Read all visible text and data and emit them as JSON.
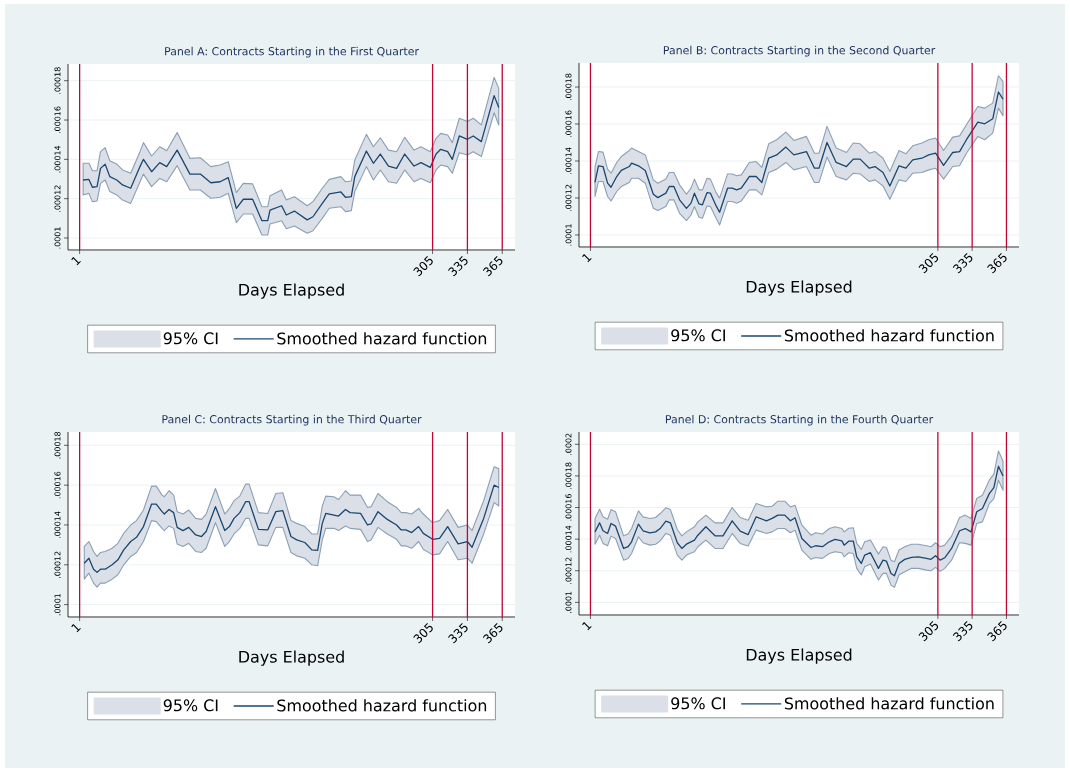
{
  "chart_data": [
    {
      "type": "line",
      "title": "Panel A: Contracts Starting in the First Quarter",
      "xlabel": "Days Elapsed",
      "legend_title": "95% CI",
      "x": [
        4,
        9,
        12,
        16,
        19,
        23,
        27,
        33,
        38,
        45,
        53,
        56,
        63,
        70,
        76,
        85,
        96,
        105,
        114,
        122,
        129,
        136,
        142,
        150,
        158,
        163,
        165,
        175,
        179,
        186,
        197,
        202,
        210,
        216,
        226,
        230,
        235,
        238,
        248,
        254,
        260,
        267,
        274,
        281,
        289,
        295,
        303,
        308,
        312,
        318,
        322,
        328,
        335,
        340,
        347,
        358,
        362
      ],
      "series": [
        {
          "name": "Smoothed hazard function",
          "color": "#1a476f",
          "values": [
            0.0001295,
            0.0001298,
            0.0001258,
            0.0001261,
            0.0001354,
            0.0001375,
            0.0001312,
            0.0001295,
            0.000127,
            0.0001253,
            0.0001363,
            0.00014,
            0.0001337,
            0.0001383,
            0.0001363,
            0.0001447,
            0.0001325,
            0.0001325,
            0.0001281,
            0.0001286,
            0.0001307,
            0.0001151,
            0.0001197,
            0.0001197,
            0.0001088,
            0.0001088,
            0.0001142,
            0.0001164,
            0.0001117,
            0.0001137,
            0.0001092,
            0.0001108,
            0.0001176,
            0.0001224,
            0.0001234,
            0.0001207,
            0.000121,
            0.0001312,
            0.0001442,
            0.000138,
            0.0001427,
            0.0001366,
            0.0001354,
            0.0001427,
            0.0001366,
            0.0001383,
            0.0001359,
            0.0001427,
            0.0001451,
            0.0001439,
            0.00014,
            0.0001519,
            0.0001502,
            0.0001519,
            0.000149,
            0.0001724,
            0.0001664
          ],
          "lower": [
            0.0001219,
            0.0001227,
            0.0001185,
            0.0001188,
            0.0001278,
            0.0001295,
            0.0001236,
            0.0001219,
            0.0001193,
            0.0001176,
            0.0001286,
            0.0001325,
            0.0001261,
            0.0001303,
            0.0001286,
            0.0001368,
            0.0001244,
            0.0001244,
            0.0001202,
            0.0001207,
            0.0001227,
            0.0001078,
            0.0001122,
            0.0001122,
            0.0001015,
            0.0001015,
            0.0001071,
            0.0001088,
            0.0001047,
            0.0001061,
            0.0001024,
            0.0001037,
            0.00011,
            0.0001151,
            0.0001159,
            0.0001134,
            0.0001139,
            0.0001236,
            0.0001363,
            0.0001295,
            0.0001346,
            0.0001286,
            0.0001278,
            0.0001346,
            0.0001286,
            0.0001303,
            0.0001281,
            0.0001346,
            0.0001371,
            0.0001363,
            0.0001329,
            0.0001434,
            0.0001422,
            0.0001439,
            0.0001414,
            0.0001637,
            0.0001575
          ],
          "upper": [
            0.000138,
            0.000138,
            0.0001342,
            0.0001342,
            0.0001439,
            0.0001459,
            0.0001393,
            0.0001376,
            0.0001346,
            0.0001329,
            0.0001439,
            0.0001485,
            0.0001417,
            0.0001464,
            0.0001444,
            0.0001536,
            0.0001405,
            0.0001408,
            0.0001363,
            0.0001371,
            0.0001388,
            0.0001231,
            0.0001278,
            0.0001275,
            0.0001159,
            0.0001159,
            0.0001215,
            0.0001244,
            0.0001193,
            0.000121,
            0.0001164,
            0.0001185,
            0.0001253,
            0.0001298,
            0.0001312,
            0.0001286,
            0.000129,
            0.0001397,
            0.0001527,
            0.0001464,
            0.000151,
            0.0001447,
            0.0001439,
            0.0001512,
            0.0001447,
            0.0001464,
            0.0001439,
            0.0001507,
            0.0001532,
            0.0001524,
            0.0001485,
            0.0001609,
            0.0001592,
            0.0001609,
            0.0001575,
            0.0001817,
            0.0001761
          ]
        }
      ],
      "xlim": [
        -9,
        376
      ],
      "ylim": [
        9.39e-05,
        0.0001885
      ],
      "xticks": [
        1,
        305,
        335,
        365
      ],
      "yticks": [
        {
          "value": 0.0001,
          "label": ".0001"
        },
        {
          "value": 0.00012,
          "label": ".00012"
        },
        {
          "value": 0.00014,
          "label": ".00014"
        },
        {
          "value": 0.00016,
          "label": ".00016"
        },
        {
          "value": 0.00018,
          "label": ".00018"
        }
      ],
      "ref_lines": [
        {
          "axis": "x",
          "value": 1,
          "color": "#c10534"
        },
        {
          "axis": "x",
          "value": 305,
          "color": "#c10534"
        },
        {
          "axis": "x",
          "value": 335,
          "color": "#c10534"
        },
        {
          "axis": "x",
          "value": 365,
          "color": "#c10534"
        }
      ],
      "grid": "y",
      "legend": "bottom"
    },
    {
      "type": "line",
      "title": "Panel B: Contracts Starting in the Second Quarter",
      "xlabel": "Days Elapsed",
      "legend_title": "95% CI",
      "x": [
        5,
        8,
        12,
        16,
        19,
        24,
        28,
        35,
        37,
        43,
        49,
        56,
        60,
        67,
        70,
        74,
        79,
        85,
        89,
        92,
        96,
        99,
        103,
        106,
        111,
        114,
        121,
        125,
        129,
        133,
        140,
        146,
        151,
        157,
        164,
        172,
        179,
        190,
        197,
        201,
        208,
        216,
        225,
        231,
        237,
        245,
        250,
        257,
        263,
        271,
        277,
        283,
        291,
        297,
        303,
        310,
        318,
        324,
        330,
        340,
        346,
        353,
        358,
        362
      ],
      "series": [
        {
          "name": "Smoothed hazard function",
          "color": "#1a476f",
          "values": [
            0.0001284,
            0.0001374,
            0.000137,
            0.000128,
            0.0001258,
            0.0001316,
            0.0001349,
            0.000137,
            0.0001388,
            0.0001374,
            0.0001349,
            0.000122,
            0.0001202,
            0.0001226,
            0.0001262,
            0.0001262,
            0.000119,
            0.0001144,
            0.0001172,
            0.0001226,
            0.0001168,
            0.0001163,
            0.0001229,
            0.0001226,
            0.0001157,
            0.0001123,
            0.0001253,
            0.0001253,
            0.0001244,
            0.0001253,
            0.0001316,
            0.0001316,
            0.0001284,
            0.0001415,
            0.0001433,
            0.0001475,
            0.0001433,
            0.0001451,
            0.0001361,
            0.0001361,
            0.00015,
            0.0001392,
            0.000137,
            0.000141,
            0.000141,
            0.0001361,
            0.000137,
            0.0001338,
            0.0001265,
            0.0001374,
            0.0001361,
            0.0001406,
            0.0001415,
            0.0001433,
            0.0001442,
            0.0001376,
            0.0001446,
            0.0001451,
            0.0001515,
            0.000161,
            0.0001601,
            0.0001628,
            0.0001773,
            0.0001735
          ],
          "lower": [
            0.0001208,
            0.0001289,
            0.0001289,
            0.0001208,
            0.0001184,
            0.0001235,
            0.0001262,
            0.0001284,
            0.0001307,
            0.0001307,
            0.000128,
            0.0001144,
            0.0001132,
            0.0001154,
            0.000119,
            0.000119,
            0.0001117,
            0.0001078,
            0.0001108,
            0.0001154,
            0.0001096,
            0.000109,
            0.0001157,
            0.0001154,
            0.000109,
            0.0001054,
            0.0001181,
            0.0001181,
            0.0001172,
            0.0001184,
            0.0001244,
            0.0001244,
            0.0001217,
            0.0001338,
            0.0001356,
            0.0001392,
            0.0001352,
            0.000137,
            0.0001284,
            0.0001284,
            0.0001421,
            0.0001316,
            0.0001298,
            0.0001334,
            0.000133,
            0.0001289,
            0.0001298,
            0.0001265,
            0.0001193,
            0.0001298,
            0.0001289,
            0.0001334,
            0.0001338,
            0.0001352,
            0.0001361,
            0.0001302,
            0.000137,
            0.0001374,
            0.0001442,
            0.0001533,
            0.0001515,
            0.0001551,
            0.0001686,
            0.0001645
          ],
          "upper": [
            0.0001367,
            0.0001451,
            0.0001448,
            0.0001356,
            0.0001334,
            0.0001392,
            0.0001424,
            0.0001457,
            0.000147,
            0.0001451,
            0.0001433,
            0.0001298,
            0.000128,
            0.0001303,
            0.0001338,
            0.0001338,
            0.0001271,
            0.000122,
            0.0001253,
            0.0001302,
            0.0001244,
            0.0001244,
            0.0001307,
            0.0001302,
            0.0001229,
            0.0001199,
            0.000133,
            0.000133,
            0.000132,
            0.0001325,
            0.0001392,
            0.0001397,
            0.0001365,
            0.0001493,
            0.0001515,
            0.0001556,
            0.0001511,
            0.0001533,
            0.0001442,
            0.0001442,
            0.0001587,
            0.000147,
            0.0001446,
            0.0001497,
            0.0001493,
            0.0001442,
            0.0001451,
            0.0001415,
            0.0001343,
            0.0001457,
            0.0001439,
            0.0001482,
            0.0001497,
            0.0001515,
            0.0001524,
            0.0001457,
            0.0001529,
            0.0001536,
            0.0001596,
            0.0001695,
            0.0001686,
            0.0001713,
            0.0001861,
            0.0001831
          ]
        }
      ],
      "xlim": [
        -9,
        376
      ],
      "ylim": [
        9.35e-05,
        0.000193
      ],
      "xticks": [
        1,
        305,
        335,
        365
      ],
      "yticks": [
        {
          "value": 0.0001,
          "label": ".0001"
        },
        {
          "value": 0.00012,
          "label": ".00012"
        },
        {
          "value": 0.00014,
          "label": ".00014"
        },
        {
          "value": 0.00016,
          "label": ".00016"
        },
        {
          "value": 0.00018,
          "label": ".00018"
        }
      ],
      "ref_lines": [
        {
          "axis": "x",
          "value": 1,
          "color": "#c10534"
        },
        {
          "axis": "x",
          "value": 305,
          "color": "#c10534"
        },
        {
          "axis": "x",
          "value": 335,
          "color": "#c10534"
        },
        {
          "axis": "x",
          "value": 365,
          "color": "#c10534"
        }
      ],
      "grid": "y",
      "legend": "bottom"
    },
    {
      "type": "line",
      "title": "Panel C: Contracts Starting in the Third Quarter",
      "xlabel": "Days Elapsed",
      "legend_title": "95% CI",
      "x": [
        5,
        9,
        13,
        16,
        19,
        23,
        29,
        34,
        39,
        45,
        50,
        56,
        63,
        67,
        72,
        74,
        78,
        82,
        85,
        90,
        95,
        101,
        106,
        110,
        118,
        126,
        130,
        134,
        139,
        144,
        147,
        155,
        163,
        170,
        176,
        183,
        188,
        195,
        201,
        206,
        210,
        213,
        220,
        224,
        230,
        234,
        243,
        249,
        252,
        258,
        266,
        274,
        278,
        282,
        287,
        293,
        297,
        305,
        311,
        318,
        327,
        335,
        339,
        349,
        358,
        362
      ],
      "series": [
        {
          "name": "Smoothed hazard function",
          "color": "#1a476f",
          "values": [
            0.0001208,
            0.0001233,
            0.0001178,
            0.0001162,
            0.0001178,
            0.0001178,
            0.00012,
            0.0001225,
            0.0001275,
            0.0001317,
            0.0001338,
            0.0001392,
            0.0001505,
            0.0001505,
            0.0001467,
            0.0001455,
            0.0001478,
            0.0001462,
            0.0001388,
            0.0001372,
            0.0001388,
            0.000135,
            0.0001342,
            0.0001367,
            0.0001492,
            0.0001372,
            0.0001392,
            0.0001433,
            0.0001462,
            0.0001517,
            0.0001517,
            0.0001378,
            0.0001375,
            0.0001467,
            0.0001472,
            0.0001342,
            0.0001325,
            0.0001312,
            0.0001275,
            0.0001272,
            0.0001408,
            0.0001458,
            0.000145,
            0.0001445,
            0.0001478,
            0.0001462,
            0.0001458,
            0.00014,
            0.0001405,
            0.0001467,
            0.0001428,
            0.00014,
            0.0001375,
            0.0001375,
            0.0001362,
            0.0001392,
            0.0001358,
            0.0001328,
            0.0001333,
            0.0001392,
            0.0001305,
            0.0001317,
            0.0001288,
            0.0001433,
            0.00016,
            0.0001588
          ],
          "lower": [
            0.0001128,
            0.0001158,
            0.0001108,
            0.0001088,
            0.0001108,
            0.0001108,
            0.0001128,
            0.000115,
            0.00012,
            0.0001242,
            0.0001262,
            0.0001317,
            0.0001422,
            0.0001417,
            0.0001383,
            0.0001372,
            0.0001395,
            0.0001383,
            0.0001305,
            0.0001292,
            0.0001308,
            0.0001267,
            0.0001262,
            0.0001283,
            0.0001412,
            0.0001292,
            0.0001317,
            0.0001355,
            0.0001383,
            0.0001433,
            0.0001433,
            0.00013,
            0.0001295,
            0.0001388,
            0.0001388,
            0.0001262,
            0.0001245,
            0.0001233,
            0.00012,
            0.0001195,
            0.0001325,
            0.0001383,
            0.0001383,
            0.0001372,
            0.0001395,
            0.0001383,
            0.0001378,
            0.0001317,
            0.0001325,
            0.0001388,
            0.0001355,
            0.0001328,
            0.0001295,
            0.0001295,
            0.0001283,
            0.0001317,
            0.0001278,
            0.000125,
            0.0001255,
            0.0001317,
            0.0001225,
            0.0001233,
            0.0001208,
            0.0001355,
            0.0001512,
            0.0001495
          ],
          "upper": [
            0.0001292,
            0.0001317,
            0.0001267,
            0.0001242,
            0.0001262,
            0.0001267,
            0.0001283,
            0.0001308,
            0.0001358,
            0.00014,
            0.0001422,
            0.0001475,
            0.0001595,
            0.0001595,
            0.000155,
            0.0001542,
            0.0001572,
            0.000155,
            0.0001467,
            0.0001455,
            0.0001475,
            0.0001433,
            0.0001428,
            0.0001455,
            0.0001583,
            0.0001455,
            0.0001483,
            0.0001522,
            0.0001545,
            0.0001605,
            0.0001605,
            0.0001462,
            0.0001458,
            0.0001558,
            0.0001562,
            0.0001422,
            0.0001408,
            0.0001392,
            0.0001355,
            0.0001355,
            0.0001495,
            0.0001545,
            0.0001542,
            0.0001528,
            0.0001572,
            0.000155,
            0.000155,
            0.0001488,
            0.0001492,
            0.0001558,
            0.0001517,
            0.0001488,
            0.0001462,
            0.0001462,
            0.0001455,
            0.0001483,
            0.0001455,
            0.0001412,
            0.0001422,
            0.0001478,
            0.0001388,
            0.00014,
            0.0001372,
            0.0001522,
            0.0001692,
            0.0001683
          ]
        }
      ],
      "xlim": [
        -9,
        376
      ],
      "ylim": [
        9.38e-05,
        0.0001867
      ],
      "xticks": [
        1,
        305,
        335,
        365
      ],
      "yticks": [
        {
          "value": 0.0001,
          "label": ".0001"
        },
        {
          "value": 0.00012,
          "label": ".00012"
        },
        {
          "value": 0.00014,
          "label": ".00014"
        },
        {
          "value": 0.00016,
          "label": ".00016"
        },
        {
          "value": 0.00018,
          "label": ".00018"
        }
      ],
      "ref_lines": [
        {
          "axis": "x",
          "value": 1,
          "color": "#c10534"
        },
        {
          "axis": "x",
          "value": 305,
          "color": "#c10534"
        },
        {
          "axis": "x",
          "value": 335,
          "color": "#c10534"
        },
        {
          "axis": "x",
          "value": 365,
          "color": "#c10534"
        }
      ],
      "grid": "y",
      "legend": "bottom"
    },
    {
      "type": "line",
      "title": "Panel D: Contracts Starting in the Fourth Quarter",
      "xlabel": "Days Elapsed",
      "legend_title": "95% CI",
      "x": [
        5,
        9,
        12,
        16,
        19,
        23,
        30,
        34,
        37,
        43,
        47,
        53,
        58,
        62,
        67,
        71,
        77,
        81,
        85,
        92,
        95,
        102,
        110,
        117,
        125,
        132,
        139,
        146,
        155,
        160,
        165,
        171,
        176,
        180,
        186,
        194,
        198,
        204,
        210,
        215,
        221,
        223,
        227,
        231,
        234,
        238,
        241,
        246,
        253,
        257,
        260,
        264,
        267,
        271,
        276,
        282,
        288,
        295,
        299,
        303,
        307,
        311,
        317,
        324,
        329,
        334,
        339,
        344,
        350,
        354,
        358,
        362
      ],
      "series": [
        {
          "name": "Smoothed hazard function",
          "color": "#1a476f",
          "values": [
            0.0001446,
            0.0001503,
            0.0001453,
            0.0001436,
            0.0001499,
            0.0001482,
            0.0001341,
            0.0001352,
            0.0001383,
            0.0001495,
            0.0001453,
            0.000144,
            0.0001446,
            0.0001467,
            0.0001514,
            0.0001503,
            0.0001377,
            0.0001341,
            0.0001368,
            0.0001394,
            0.0001425,
            0.0001478,
            0.0001421,
            0.0001421,
            0.0001516,
            0.0001451,
            0.0001429,
            0.0001541,
            0.0001516,
            0.0001531,
            0.0001552,
            0.0001552,
            0.0001516,
            0.0001535,
            0.0001404,
            0.0001347,
            0.0001358,
            0.0001352,
            0.0001383,
            0.0001398,
            0.0001389,
            0.0001362,
            0.0001387,
            0.0001387,
            0.0001288,
            0.0001246,
            0.0001299,
            0.0001314,
            0.0001215,
            0.0001267,
            0.0001261,
            0.0001183,
            0.0001168,
            0.0001246,
            0.0001272,
            0.0001284,
            0.0001288,
            0.0001278,
            0.0001272,
            0.0001295,
            0.0001267,
            0.0001282,
            0.0001341,
            0.0001453,
            0.0001467,
            0.0001446,
            0.0001573,
            0.0001594,
            0.0001688,
            0.0001726,
            0.0001861,
            0.00018
          ],
          "lower": [
            0.0001368,
            0.0001425,
            0.0001373,
            0.0001358,
            0.0001419,
            0.0001404,
            0.0001267,
            0.0001278,
            0.0001309,
            0.0001415,
            0.0001377,
            0.0001362,
            0.0001368,
            0.0001389,
            0.0001436,
            0.0001425,
            0.0001299,
            0.0001267,
            0.0001299,
            0.000132,
            0.0001352,
            0.0001394,
            0.0001341,
            0.0001341,
            0.0001436,
            0.0001373,
            0.0001356,
            0.0001457,
            0.0001436,
            0.0001446,
            0.0001467,
            0.0001467,
            0.000144,
            0.0001457,
            0.0001331,
            0.0001272,
            0.0001284,
            0.0001278,
            0.0001309,
            0.000132,
            0.0001314,
            0.0001288,
            0.0001314,
            0.0001309,
            0.0001215,
            0.0001173,
            0.0001225,
            0.0001242,
            0.0001141,
            0.0001183,
            0.0001183,
            0.0001109,
            0.0001095,
            0.0001173,
            0.0001194,
            0.0001215,
            0.0001215,
            0.0001204,
            0.00012,
            0.0001221,
            0.0001196,
            0.0001215,
            0.0001267,
            0.0001377,
            0.0001373,
            0.0001362,
            0.0001499,
            0.0001509,
            0.0001625,
            0.0001657,
            0.0001773,
            0.0001709
          ],
          "upper": [
            0.0001531,
            0.0001589,
            0.0001541,
            0.0001526,
            0.0001587,
            0.0001573,
            0.0001421,
            0.0001432,
            0.0001467,
            0.0001579,
            0.0001541,
            0.0001531,
            0.0001537,
            0.0001562,
            0.0001598,
            0.0001587,
            0.0001461,
            0.0001421,
            0.0001446,
            0.0001478,
            0.0001509,
            0.0001552,
            0.0001503,
            0.0001503,
            0.00016,
            0.0001537,
            0.000152,
            0.0001625,
            0.0001604,
            0.0001608,
            0.000164,
            0.000164,
            0.0001604,
            0.0001615,
            0.0001488,
            0.0001425,
            0.000144,
            0.0001432,
            0.0001467,
            0.0001478,
            0.0001467,
            0.0001446,
            0.0001469,
            0.0001472,
            0.0001373,
            0.0001335,
            0.0001383,
            0.0001394,
            0.0001305,
            0.0001352,
            0.0001347,
            0.0001267,
            0.0001257,
            0.0001331,
            0.0001352,
            0.0001368,
            0.0001368,
            0.0001358,
            0.0001352,
            0.0001377,
            0.0001352,
            0.0001362,
            0.0001419,
            0.0001537,
            0.0001552,
            0.0001531,
            0.0001657,
            0.0001678,
            0.0001773,
            0.0001811,
            0.0001958,
            0.0001895
          ]
        }
      ],
      "xlim": [
        -9,
        376
      ],
      "ylim": [
        9.2e-05,
        0.0002078
      ],
      "xticks": [
        1,
        305,
        335,
        365
      ],
      "yticks": [
        {
          "value": 0.0001,
          "label": ".0001"
        },
        {
          "value": 0.00012,
          "label": ".00012"
        },
        {
          "value": 0.00014,
          "label": ".00014"
        },
        {
          "value": 0.00016,
          "label": ".00016"
        },
        {
          "value": 0.00018,
          "label": ".00018"
        },
        {
          "value": 0.0002,
          "label": ".0002"
        }
      ],
      "ref_lines": [
        {
          "axis": "x",
          "value": 1,
          "color": "#c10534"
        },
        {
          "axis": "x",
          "value": 305,
          "color": "#c10534"
        },
        {
          "axis": "x",
          "value": 335,
          "color": "#c10534"
        },
        {
          "axis": "x",
          "value": 365,
          "color": "#c10534"
        }
      ],
      "grid": "y",
      "legend": "bottom"
    }
  ]
}
